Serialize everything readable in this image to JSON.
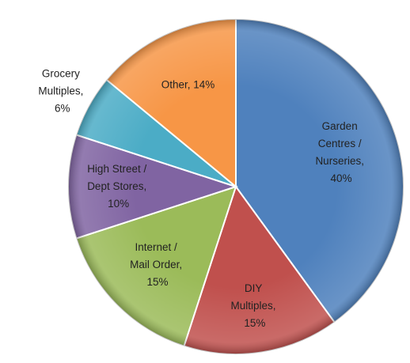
{
  "chart_data": {
    "type": "pie",
    "values": [
      40,
      15,
      15,
      10,
      6,
      14
    ],
    "value_labels": [
      "Garden Centres / Nurseries, 40%",
      "DIY Multiples, 15%",
      "Internet / Mail Order, 15%",
      "High Street / Dept Stores, 10%",
      "Grocery Multiples, 6%",
      "Other, 14%"
    ],
    "colors": [
      "#4f81bd",
      "#c0504d",
      "#9bbb59",
      "#8064a2",
      "#4bacc6",
      "#f79646"
    ]
  }
}
